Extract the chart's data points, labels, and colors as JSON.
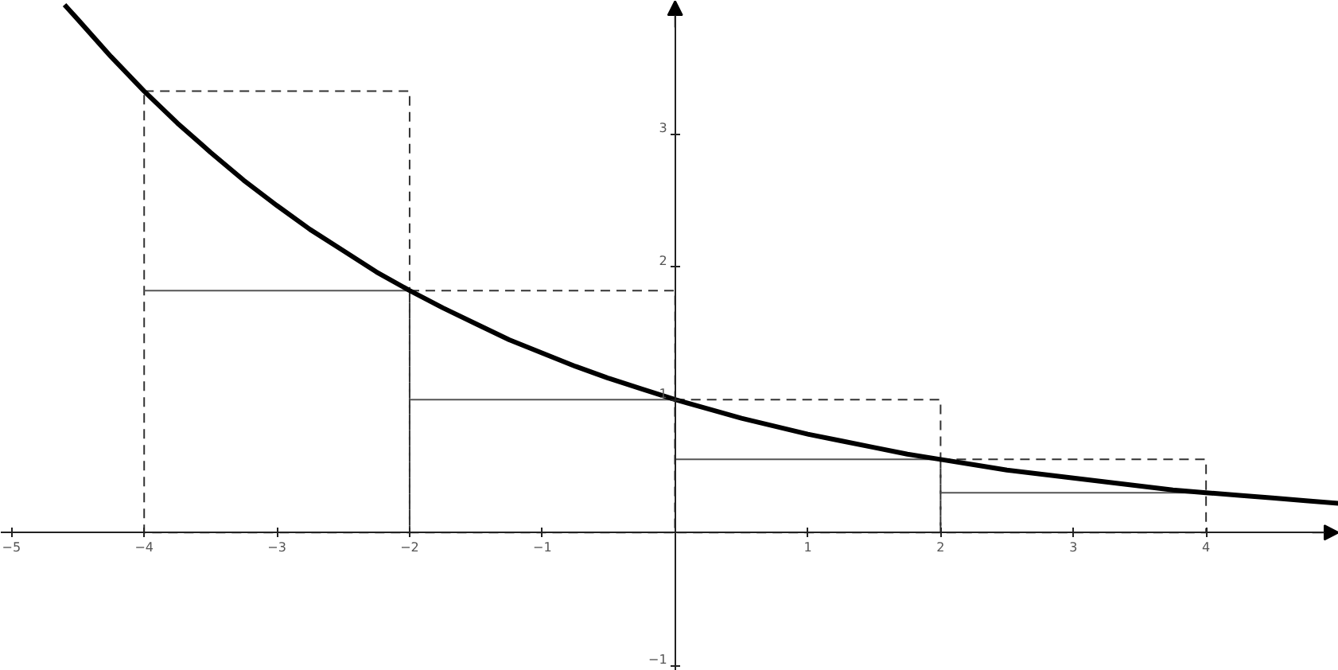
{
  "chart_data": {
    "type": "line",
    "xlim": [
      -5.08,
      5.0
    ],
    "ylim": [
      -1.04,
      4.0
    ],
    "xticks": [
      {
        "value": -5,
        "label": "−5"
      },
      {
        "value": -4,
        "label": "−4"
      },
      {
        "value": -3,
        "label": "−3"
      },
      {
        "value": -2,
        "label": "−2"
      },
      {
        "value": -1,
        "label": "−1"
      },
      1,
      2,
      3,
      4
    ],
    "yticks": [
      {
        "value": -1,
        "label": "−1"
      },
      1,
      2,
      3
    ],
    "series": [
      {
        "type": "histogram",
        "color": "#333333",
        "line_style": "dashed",
        "bins": [
          -4,
          -2,
          0,
          2,
          4
        ],
        "values": [
          3.32,
          1.82,
          1,
          0.55
        ]
      },
      {
        "type": "line",
        "color": "#555555",
        "line_style": "solid",
        "x": [
          -4,
          -2,
          null,
          -2,
          0,
          null,
          0,
          2,
          null,
          2,
          4
        ],
        "values": [
          1.82,
          1.82,
          null,
          1,
          1,
          null,
          0.55,
          0.55,
          null,
          0.3,
          0.3
        ]
      },
      {
        "color": "#000000",
        "line_style": "solid",
        "x": [
          -4.6,
          -4.5,
          -4.25,
          -4,
          -3.75,
          -3.5,
          -3.25,
          -3,
          -2.75,
          -2.5,
          -2.25,
          -2,
          -1.75,
          -1.5,
          -1.25,
          -1,
          -0.75,
          -0.5,
          -0.25,
          0,
          0.25,
          0.5,
          0.75,
          1,
          1.25,
          1.5,
          1.75,
          2,
          2.25,
          2.5,
          2.75,
          3,
          3.25,
          3.5,
          3.75,
          4,
          4.25,
          4.5,
          4.75,
          5
        ],
        "values": [
          3.97,
          3.86,
          3.58,
          3.32,
          3.08,
          2.86,
          2.65,
          2.46,
          2.28,
          2.12,
          1.96,
          1.82,
          1.69,
          1.57,
          1.45,
          1.35,
          1.25,
          1.16,
          1.08,
          1,
          0.93,
          0.86,
          0.8,
          0.74,
          0.69,
          0.64,
          0.59,
          0.55,
          0.51,
          0.47,
          0.44,
          0.41,
          0.38,
          0.35,
          0.32,
          0.3,
          0.28,
          0.26,
          0.24,
          0.22
        ]
      }
    ]
  }
}
